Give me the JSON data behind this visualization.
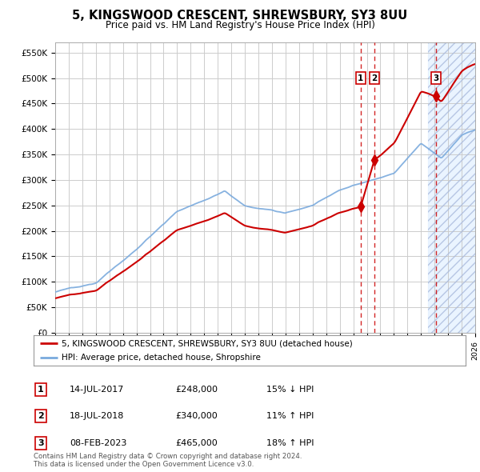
{
  "title": "5, KINGSWOOD CRESCENT, SHREWSBURY, SY3 8UU",
  "subtitle": "Price paid vs. HM Land Registry's House Price Index (HPI)",
  "ylabel_ticks": [
    "£0",
    "£50K",
    "£100K",
    "£150K",
    "£200K",
    "£250K",
    "£300K",
    "£350K",
    "£400K",
    "£450K",
    "£500K",
    "£550K"
  ],
  "ytick_values": [
    0,
    50000,
    100000,
    150000,
    200000,
    250000,
    300000,
    350000,
    400000,
    450000,
    500000,
    550000
  ],
  "ylim": [
    0,
    570000
  ],
  "xmin": 1995.0,
  "xmax": 2026.0,
  "sale_years": [
    2017.54,
    2018.54,
    2023.1
  ],
  "sale_prices": [
    248000,
    340000,
    465000
  ],
  "vline_years": [
    2017.54,
    2018.54
  ],
  "shade_start": 2022.5,
  "legend_entries": [
    "5, KINGSWOOD CRESCENT, SHREWSBURY, SY3 8UU (detached house)",
    "HPI: Average price, detached house, Shropshire"
  ],
  "table_rows": [
    {
      "num": "1",
      "date": "14-JUL-2017",
      "price": "£248,000",
      "change": "15% ↓ HPI"
    },
    {
      "num": "2",
      "date": "18-JUL-2018",
      "price": "£340,000",
      "change": "11% ↑ HPI"
    },
    {
      "num": "3",
      "date": "08-FEB-2023",
      "price": "£465,000",
      "change": "18% ↑ HPI"
    }
  ],
  "footer": "Contains HM Land Registry data © Crown copyright and database right 2024.\nThis data is licensed under the Open Government Licence v3.0.",
  "red_color": "#cc0000",
  "blue_color": "#7aaadd",
  "grid_color": "#cccccc",
  "bg_color": "#ffffff",
  "shade_color": "#ddeeff"
}
